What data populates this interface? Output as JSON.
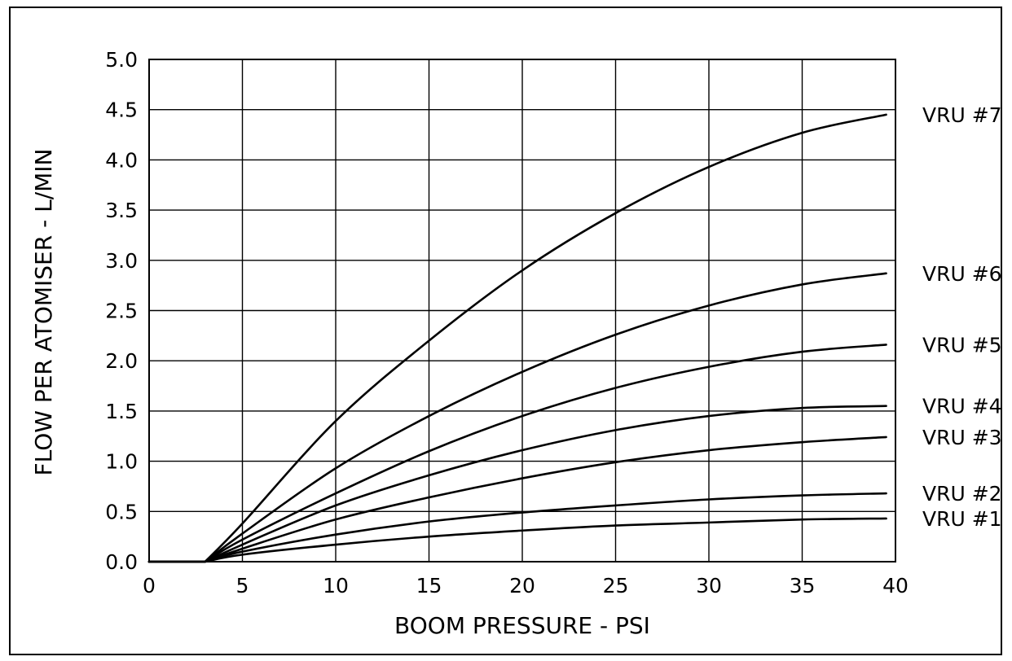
{
  "chart_data": {
    "type": "line",
    "title": "",
    "xlabel": "BOOM PRESSURE - PSI",
    "ylabel": "FLOW PER ATOMISER - L/MIN",
    "xlim": [
      0,
      40
    ],
    "ylim": [
      0,
      5.0
    ],
    "x_ticks": [
      0,
      5,
      10,
      15,
      20,
      25,
      30,
      35,
      40
    ],
    "x_tick_labels": [
      "0",
      "5",
      "10",
      "15",
      "20",
      "25",
      "30",
      "35",
      "40"
    ],
    "y_ticks": [
      0,
      0.5,
      1.0,
      1.5,
      2.0,
      2.5,
      3.0,
      3.5,
      4.0,
      4.5,
      5.0
    ],
    "y_tick_labels": [
      "0.0",
      "0.5",
      "1.0",
      "1.5",
      "2.0",
      "2.5",
      "3.0",
      "3.5",
      "4.0",
      "4.5",
      "5.0"
    ],
    "grid": true,
    "legend": "series labels at right end of each curve",
    "line_color": "#000000",
    "series": [
      {
        "name": "VRU #1",
        "x": [
          0,
          3,
          5,
          10,
          15,
          20,
          25,
          30,
          35,
          39.5
        ],
        "y": [
          0,
          0,
          0.07,
          0.17,
          0.25,
          0.31,
          0.36,
          0.39,
          0.42,
          0.43
        ]
      },
      {
        "name": "VRU #2",
        "x": [
          0,
          3,
          5,
          10,
          15,
          20,
          25,
          30,
          35,
          39.5
        ],
        "y": [
          0,
          0,
          0.1,
          0.27,
          0.4,
          0.49,
          0.56,
          0.62,
          0.66,
          0.68
        ]
      },
      {
        "name": "VRU #3",
        "x": [
          0,
          3,
          5,
          10,
          15,
          20,
          25,
          30,
          35,
          39.5
        ],
        "y": [
          0,
          0,
          0.13,
          0.42,
          0.64,
          0.83,
          0.99,
          1.11,
          1.19,
          1.24
        ]
      },
      {
        "name": "VRU #4",
        "x": [
          0,
          3,
          5,
          10,
          15,
          20,
          25,
          30,
          35,
          39.5
        ],
        "y": [
          0,
          0,
          0.17,
          0.56,
          0.86,
          1.11,
          1.31,
          1.45,
          1.53,
          1.55
        ]
      },
      {
        "name": "VRU #5",
        "x": [
          0,
          3,
          5,
          10,
          15,
          20,
          25,
          30,
          35,
          39.5
        ],
        "y": [
          0,
          0,
          0.22,
          0.68,
          1.1,
          1.45,
          1.73,
          1.94,
          2.09,
          2.16
        ]
      },
      {
        "name": "VRU #6",
        "x": [
          0,
          3,
          5,
          10,
          15,
          20,
          25,
          30,
          35,
          39.5
        ],
        "y": [
          0,
          0,
          0.28,
          0.93,
          1.45,
          1.89,
          2.26,
          2.55,
          2.76,
          2.87
        ]
      },
      {
        "name": "VRU #7",
        "x": [
          0,
          3,
          5,
          10,
          15,
          20,
          25,
          30,
          35,
          39.5
        ],
        "y": [
          0,
          0,
          0.38,
          1.4,
          2.2,
          2.9,
          3.47,
          3.93,
          4.27,
          4.45
        ]
      }
    ]
  }
}
